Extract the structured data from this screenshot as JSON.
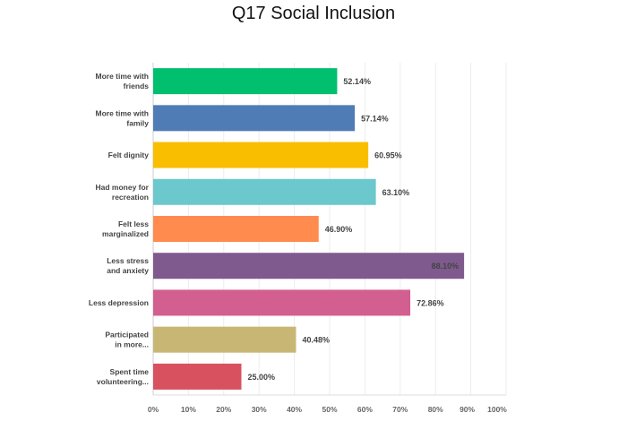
{
  "chart_data": {
    "type": "bar",
    "orientation": "horizontal",
    "title": "Q17 Social Inclusion",
    "categories": [
      [
        "More time with",
        "friends"
      ],
      [
        "More time with",
        "family"
      ],
      [
        "Felt dignity"
      ],
      [
        "Had money for",
        "recreation"
      ],
      [
        "Felt less",
        "marginalized"
      ],
      [
        "Less stress",
        "and anxiety"
      ],
      [
        "Less depression"
      ],
      [
        "Participated",
        "in more..."
      ],
      [
        "Spent time",
        "volunteering..."
      ]
    ],
    "values": [
      52.14,
      57.14,
      60.95,
      63.1,
      46.9,
      88.1,
      72.86,
      40.48,
      25.0
    ],
    "value_labels": [
      "52.14%",
      "57.14%",
      "60.95%",
      "63.10%",
      "46.90%",
      "88.10%",
      "72.86%",
      "40.48%",
      "25.00%"
    ],
    "colors": [
      "#00bf6f",
      "#507cb6",
      "#f9be00",
      "#6bc8cd",
      "#ff8b4f",
      "#7f5a8e",
      "#d25f90",
      "#c8b774",
      "#d8515f"
    ],
    "xlim": [
      0,
      100
    ],
    "xticks": [
      "0%",
      "10%",
      "20%",
      "30%",
      "40%",
      "50%",
      "60%",
      "70%",
      "80%",
      "90%",
      "100%"
    ],
    "grid": true
  }
}
